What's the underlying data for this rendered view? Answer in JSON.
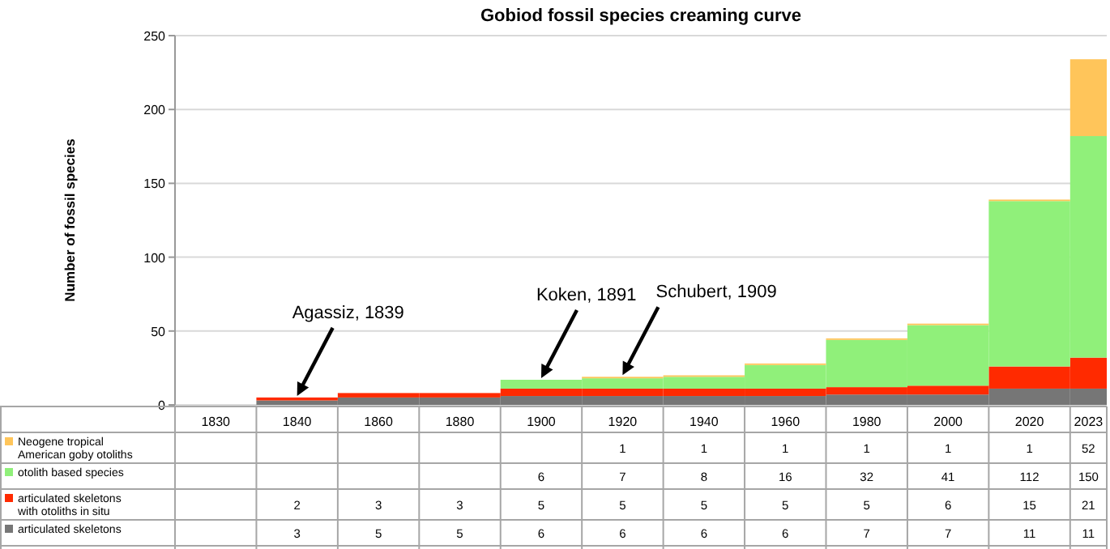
{
  "chart_data": {
    "type": "bar",
    "title": "Gobiod fossil species creaming curve",
    "ylabel": "Number of fossil species",
    "stacked": true,
    "data_labels": true,
    "grid": "y",
    "legend": "bottom left",
    "categories": [
      "1830",
      "1840",
      "1860",
      "1880",
      "1900",
      "1920",
      "1940",
      "1960",
      "1980",
      "2000",
      "2020",
      "2023"
    ],
    "ylim": [
      0,
      250
    ],
    "yticks": [
      0,
      50,
      100,
      150,
      200,
      250
    ],
    "series": [
      {
        "name": "articulated skeletons",
        "color": "#767676",
        "values": [
          null,
          3,
          5,
          5,
          6,
          6,
          6,
          6,
          7,
          7,
          11,
          11
        ]
      },
      {
        "name": "articulated skeletons with otoliths in situ",
        "color": "#ff2a00",
        "values": [
          null,
          2,
          3,
          3,
          5,
          5,
          5,
          5,
          5,
          6,
          15,
          21
        ]
      },
      {
        "name": "otolith based species",
        "color": "#90f07a",
        "values": [
          null,
          null,
          null,
          null,
          6,
          7,
          8,
          16,
          32,
          41,
          112,
          150
        ]
      },
      {
        "name": "Neogene tropical American goby otoliths",
        "color": "#ffc55a",
        "values": [
          null,
          null,
          null,
          null,
          null,
          1,
          1,
          1,
          1,
          1,
          1,
          52
        ]
      }
    ],
    "annotations": [
      {
        "text": "Agassiz, 1839",
        "x": "1840",
        "y": 5
      },
      {
        "text": "Koken, 1891",
        "x": "1900",
        "y": 17
      },
      {
        "text": "Schubert, 1909",
        "x": "1920",
        "y": 19
      }
    ]
  }
}
